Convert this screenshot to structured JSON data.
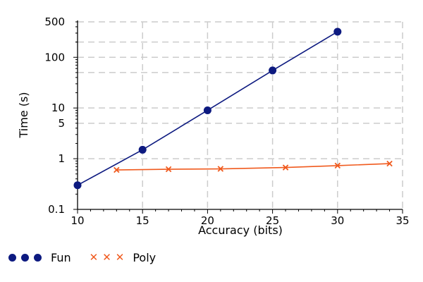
{
  "chart_data": {
    "type": "line",
    "title": "",
    "xlabel": "Accuracy (bits)",
    "ylabel": "Time (s)",
    "xlim": [
      10,
      35
    ],
    "ylim": [
      0.1,
      500
    ],
    "yscale": "log",
    "x_ticks": [
      10,
      15,
      20,
      25,
      30,
      35
    ],
    "y_ticks": [
      0.1,
      1,
      5,
      10,
      100,
      500
    ],
    "y_tick_labels": [
      "0.1",
      "1",
      "5",
      "10",
      "100",
      "500"
    ],
    "grid": true,
    "legend_position": "bottom-left",
    "series": [
      {
        "name": "Fun",
        "color": "#0d1a80",
        "marker": "circle",
        "x": [
          10,
          15,
          20,
          25,
          30
        ],
        "y": [
          0.3,
          1.5,
          9,
          55,
          320
        ]
      },
      {
        "name": "Poly",
        "color": "#f05a1e",
        "marker": "x",
        "x": [
          13,
          17,
          21,
          26,
          30,
          34
        ],
        "y": [
          0.6,
          0.62,
          0.63,
          0.67,
          0.73,
          0.8
        ]
      }
    ]
  }
}
